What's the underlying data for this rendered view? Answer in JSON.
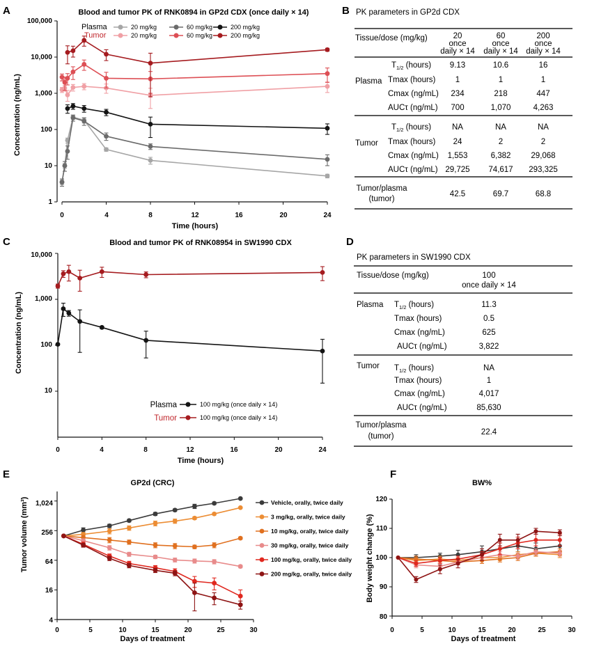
{
  "colors": {
    "axis": "#111111"
  },
  "charts": {
    "A": {
      "letter": "A",
      "title": "Blood and tumor PK of RNK0894 in GP2d CDX (once daily × 14)",
      "xlabel": "Time (hours)",
      "ylabel": "Concentration (ng/mL)",
      "xticks": [
        "0",
        "4",
        "8",
        "12",
        "16",
        "20",
        "24"
      ],
      "yticks": [
        "1",
        "10",
        "100",
        "1,000",
        "10,000",
        "100,000"
      ],
      "legend": {
        "plasma": "Plasma",
        "tumor": "Tumor",
        "d20": "20 mg/kg",
        "d60": "60 mg/kg",
        "d200": "200 mg/kg"
      }
    },
    "B": {
      "letter": "B",
      "title": "PK parameters in GP2d CDX",
      "header": {
        "label": "Tissue/dose (mg/kg)",
        "cols": [
          [
            "20",
            "once",
            "daily × 14"
          ],
          [
            "60",
            "once",
            "daily × 14"
          ],
          [
            "200",
            "once",
            "daily × 14"
          ]
        ]
      },
      "groups": [
        {
          "name": "Plasma",
          "rows": [
            {
              "label": "T",
              "sub": "1/2",
              "suffix": " (hours)",
              "values": [
                "9.13",
                "10.6",
                "16"
              ]
            },
            {
              "label": "Tmax (hours)",
              "values": [
                "1",
                "1",
                "1"
              ]
            },
            {
              "label": "Cmax (ng/mL)",
              "values": [
                "234",
                "218",
                "447"
              ]
            },
            {
              "label": "AUCτ (ng/mL)",
              "values": [
                "700",
                "1,070",
                "4,263"
              ]
            }
          ]
        },
        {
          "name": "Tumor",
          "rows": [
            {
              "label": "T",
              "sub": "1/2",
              "suffix": " (hours)",
              "values": [
                "NA",
                "NA",
                "NA"
              ]
            },
            {
              "label": "Tmax (hours)",
              "values": [
                "24",
                "2",
                "2"
              ]
            },
            {
              "label": "Cmax (ng/mL)",
              "values": [
                "1,553",
                "6,382",
                "29,068"
              ]
            },
            {
              "label": "AUCτ (ng/mL)",
              "values": [
                "29,725",
                "74,617",
                "293,325"
              ]
            }
          ]
        }
      ],
      "ratio": {
        "label1": "Tumor/plasma",
        "label2": "(tumor)",
        "values": [
          "42.5",
          "69.7",
          "68.8"
        ]
      }
    },
    "C": {
      "letter": "C",
      "title": "Blood and tumor PK of RNK08954 in SW1990 CDX",
      "xlabel": "Time (hours)",
      "ylabel": "Concentration (ng/mL)",
      "xticks": [
        "0",
        "4",
        "8",
        "12",
        "16",
        "20",
        "24"
      ],
      "yticks": [
        "10",
        "100",
        "1,000",
        "10,000"
      ],
      "legend": {
        "plasma": "Plasma",
        "tumor": "Tumor",
        "dose": "100 mg/kg (once daily × 14)"
      }
    },
    "D": {
      "letter": "D",
      "title": "PK parameters in SW1990 CDX",
      "header": {
        "label": "Tissue/dose (mg/kg)",
        "cols": [
          [
            "100",
            "once daily × 14"
          ]
        ]
      },
      "groups": [
        {
          "name": "Plasma",
          "rows": [
            {
              "label": "T",
              "sub": "1/2",
              "suffix": " (hours)",
              "values": [
                "11.3"
              ]
            },
            {
              "label": "Tmax (hours)",
              "values": [
                "0.5"
              ]
            },
            {
              "label": "Cmax (ng/mL)",
              "values": [
                "625"
              ]
            },
            {
              "label": "AUCτ (ng/mL)",
              "values": [
                "3,822"
              ]
            }
          ]
        },
        {
          "name": "Tumor",
          "rows": [
            {
              "label": "T",
              "sub": "1/2",
              "suffix": " (hours)",
              "values": [
                "NA"
              ]
            },
            {
              "label": "Tmax (hours)",
              "values": [
                "1"
              ]
            },
            {
              "label": "Cmax (ng/mL)",
              "values": [
                "4,017"
              ]
            },
            {
              "label": "AUCτ (ng/mL)",
              "values": [
                "85,630"
              ]
            }
          ]
        }
      ],
      "ratio": {
        "label1": "Tumor/plasma",
        "label2": "(tumor)",
        "values": [
          "22.4"
        ]
      }
    },
    "E": {
      "letter": "E",
      "title": "GP2d (CRC)",
      "xlabel": "Days of treatment",
      "ylabel": "Tumor volume (mm³)",
      "xticks": [
        "0",
        "5",
        "10",
        "15",
        "20",
        "25",
        "30"
      ],
      "yticks": [
        "4",
        "16",
        "64",
        "256",
        "1,024"
      ]
    },
    "F": {
      "letter": "F",
      "title": "BW%",
      "xlabel": "Days of treatment",
      "ylabel": "Body weight change (%)",
      "xticks": [
        "0",
        "5",
        "10",
        "15",
        "20",
        "25",
        "30"
      ],
      "yticks": [
        "80",
        "90",
        "100",
        "110",
        "120"
      ]
    }
  },
  "chart_data": [
    {
      "id": "A",
      "type": "line",
      "y_scale": "log",
      "xlim": [
        0,
        24
      ],
      "ylim": [
        1,
        100000
      ],
      "series": [
        {
          "name": "Plasma 20 mg/kg",
          "color": "#a6a6a6",
          "x": [
            0,
            0.25,
            0.5,
            1,
            2,
            4,
            8,
            24
          ],
          "y": [
            3.5,
            10,
            50,
            220,
            180,
            28,
            14,
            5.2
          ],
          "err": [
            0.5,
            1.5,
            8,
            30,
            30,
            3,
            3,
            0.6
          ]
        },
        {
          "name": "Plasma 60 mg/kg",
          "color": "#6b6b6b",
          "x": [
            0,
            0.25,
            0.5,
            1,
            2,
            4,
            8,
            24
          ],
          "y": [
            3.5,
            10,
            25,
            210,
            170,
            65,
            34,
            15
          ],
          "err": [
            0.8,
            3,
            10,
            40,
            40,
            15,
            6,
            5
          ]
        },
        {
          "name": "Plasma 200 mg/kg",
          "color": "#141414",
          "x": [
            0.5,
            1,
            2,
            4,
            8,
            24
          ],
          "y": [
            380,
            440,
            380,
            300,
            140,
            108
          ],
          "err": [
            100,
            80,
            80,
            60,
            80,
            35
          ]
        },
        {
          "name": "Tumor 20 mg/kg",
          "color": "#f0a0a5",
          "x": [
            0,
            0.25,
            0.5,
            1,
            2,
            4,
            8,
            24
          ],
          "y": [
            1250,
            1400,
            900,
            1450,
            1550,
            1400,
            880,
            1550
          ],
          "err": [
            200,
            250,
            300,
            300,
            300,
            400,
            500,
            500
          ]
        },
        {
          "name": "Tumor 60 mg/kg",
          "color": "#dd4f55",
          "x": [
            0,
            0.25,
            0.5,
            1,
            2,
            4,
            8,
            24
          ],
          "y": [
            2800,
            2000,
            2600,
            3900,
            6300,
            2600,
            2500,
            3500
          ],
          "err": [
            600,
            800,
            900,
            1500,
            2000,
            1200,
            1500,
            1500
          ]
        },
        {
          "name": "Tumor 200 mg/kg",
          "color": "#a51b1f",
          "x": [
            0.5,
            1,
            2,
            4,
            8,
            24
          ],
          "y": [
            13500,
            15000,
            29000,
            12000,
            6800,
            16000
          ],
          "err": [
            7000,
            5000,
            9000,
            4000,
            6000,
            1500
          ]
        }
      ]
    },
    {
      "id": "C",
      "type": "line",
      "y_scale": "log",
      "xlim": [
        0,
        24
      ],
      "ylim": [
        1,
        10000
      ],
      "series": [
        {
          "name": "Plasma 100 mg/kg (once daily × 14)",
          "color": "#141414",
          "x": [
            0,
            0.5,
            1,
            2,
            4,
            8,
            24
          ],
          "y": [
            105,
            625,
            500,
            330,
            245,
            128,
            75
          ],
          "err": [
            5,
            200,
            70,
            260,
            15,
            75,
            60
          ]
        },
        {
          "name": "Tumor 100 mg/kg (once daily × 14)",
          "color": "#a51b1f",
          "x": [
            0,
            0.5,
            1,
            2,
            4,
            8,
            24
          ],
          "y": [
            1950,
            3600,
            4000,
            2900,
            4000,
            3450,
            3850
          ],
          "err": [
            200,
            600,
            1500,
            1400,
            1000,
            500,
            1300
          ]
        }
      ]
    },
    {
      "id": "E",
      "type": "line",
      "y_scale": "log2",
      "xlim": [
        0,
        30
      ],
      "ylim": [
        4,
        1600
      ],
      "series": [
        {
          "name": "Vehicle, orally, twice daily",
          "color": "#3b3b3b",
          "x": [
            1,
            4,
            8,
            11,
            15,
            18,
            21,
            24,
            28
          ],
          "y": [
            200,
            262,
            320,
            410,
            560,
            670,
            800,
            920,
            1150
          ],
          "err": [
            0,
            30,
            25,
            25,
            40,
            40,
            80,
            50,
            0
          ]
        },
        {
          "name": "3 mg/kg, orally, twice daily",
          "color": "#ec8d34",
          "x": [
            1,
            4,
            8,
            11,
            15,
            18,
            21,
            24,
            28
          ],
          "y": [
            200,
            215,
            250,
            290,
            360,
            400,
            460,
            560,
            750
          ],
          "err": [
            0,
            20,
            30,
            30,
            40,
            40,
            30,
            30,
            0
          ]
        },
        {
          "name": "10 mg/kg, orally, twice daily",
          "color": "#e0701f",
          "x": [
            1,
            4,
            8,
            11,
            15,
            18,
            21,
            24,
            28
          ],
          "y": [
            200,
            185,
            165,
            150,
            130,
            125,
            120,
            130,
            180
          ],
          "err": [
            0,
            20,
            20,
            15,
            15,
            15,
            10,
            15,
            10
          ]
        },
        {
          "name": "30 mg/kg, orally, twice daily",
          "color": "#e88b8b",
          "x": [
            1,
            4,
            8,
            11,
            15,
            18,
            21,
            24,
            28
          ],
          "y": [
            200,
            160,
            115,
            85,
            75,
            65,
            62,
            60,
            48
          ],
          "err": [
            0,
            15,
            12,
            8,
            6,
            6,
            6,
            6,
            3
          ]
        },
        {
          "name": "100 mg/kg, orally, twice daily",
          "color": "#e0281f",
          "x": [
            1,
            4,
            8,
            11,
            15,
            18,
            21,
            24,
            28
          ],
          "y": [
            200,
            135,
            78,
            55,
            45,
            38,
            24,
            22,
            12
          ],
          "err": [
            0,
            15,
            8,
            6,
            5,
            5,
            6,
            6,
            4
          ]
        },
        {
          "name": "200 mg/kg, orally, twice daily",
          "color": "#8e1414",
          "x": [
            1,
            4,
            8,
            11,
            15,
            18,
            21,
            24,
            28
          ],
          "y": [
            200,
            130,
            70,
            50,
            40,
            35,
            14,
            11,
            8
          ],
          "err": [
            0,
            12,
            7,
            5,
            4,
            4,
            8,
            3,
            1.5
          ]
        }
      ]
    },
    {
      "id": "F",
      "type": "line",
      "y_scale": "linear",
      "xlim": [
        0,
        30
      ],
      "ylim": [
        80,
        120
      ],
      "series": [
        {
          "name": "Vehicle",
          "color": "#3b3b3b",
          "x": [
            1,
            4,
            8,
            11,
            15,
            18,
            21,
            24,
            28
          ],
          "y": [
            100,
            100,
            100.5,
            101,
            102,
            103,
            104,
            103,
            104
          ],
          "err": [
            0,
            1,
            1,
            1.5,
            2,
            2,
            2,
            2,
            2
          ]
        },
        {
          "name": "3 mg/kg",
          "color": "#ec8d34",
          "x": [
            1,
            4,
            8,
            11,
            15,
            18,
            21,
            24,
            28
          ],
          "y": [
            100,
            99,
            99.5,
            99,
            100,
            100,
            101,
            101.5,
            101
          ],
          "err": [
            0,
            1,
            1,
            1,
            1,
            1,
            1,
            1,
            1
          ]
        },
        {
          "name": "10 mg/kg",
          "color": "#e0701f",
          "x": [
            1,
            4,
            8,
            11,
            15,
            18,
            21,
            24,
            28
          ],
          "y": [
            100,
            99.5,
            99,
            98.5,
            99,
            99.5,
            100,
            101.5,
            102
          ],
          "err": [
            0,
            1,
            1,
            1,
            1,
            1,
            1,
            1,
            1
          ]
        },
        {
          "name": "30 mg/kg",
          "color": "#e88b8b",
          "x": [
            1,
            4,
            8,
            11,
            15,
            18,
            21,
            24,
            28
          ],
          "y": [
            100,
            97.5,
            97,
            98.5,
            100,
            101,
            100.5,
            102,
            101.5
          ],
          "err": [
            0,
            1,
            1,
            1,
            1,
            1,
            1,
            1,
            1
          ]
        },
        {
          "name": "100 mg/kg",
          "color": "#e0281f",
          "x": [
            1,
            4,
            8,
            11,
            15,
            18,
            21,
            24,
            28
          ],
          "y": [
            100,
            98,
            99,
            99.5,
            101,
            103,
            105,
            106,
            106
          ],
          "err": [
            0,
            1,
            1,
            1,
            1,
            2,
            2,
            2,
            2
          ]
        },
        {
          "name": "200 mg/kg",
          "color": "#8e1414",
          "x": [
            1,
            4,
            8,
            11,
            15,
            18,
            21,
            24,
            28
          ],
          "y": [
            100,
            92.5,
            96,
            98,
            101,
            106,
            106,
            109,
            108.5
          ],
          "err": [
            0,
            1,
            1.5,
            1.5,
            2,
            2,
            2,
            1,
            1
          ]
        }
      ]
    }
  ]
}
